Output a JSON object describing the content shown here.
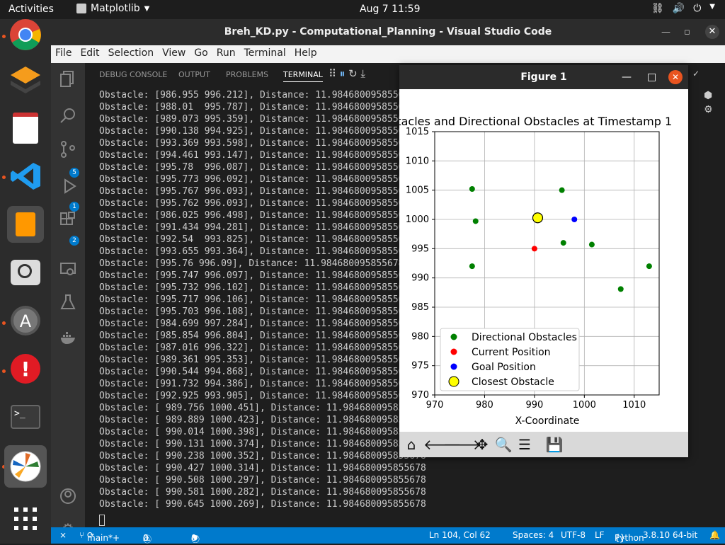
{
  "topbar": {
    "activities": "Activities",
    "app": "Matplotlib",
    "clock": "Aug 7  11:59"
  },
  "window": {
    "title": "Breh_KD.py - Computational_Planning - Visual Studio Code"
  },
  "menu": [
    "File",
    "Edit",
    "Selection",
    "View",
    "Go",
    "Run",
    "Terminal",
    "Help"
  ],
  "panel_tabs": [
    "DEBUG CONSOLE",
    "OUTPUT",
    "PROBLEMS",
    "TERMINAL"
  ],
  "badges": {
    "scm": "5",
    "run": "1",
    "ext": "2",
    "settings": "1"
  },
  "terminal_lines": [
    "Obstacle: [986.955 996.212], Distance: 11.984680095855678",
    "Obstacle: [988.01  995.787], Distance: 11.984680095855678",
    "Obstacle: [989.073 995.359], Distance: 11.984680095855678",
    "Obstacle: [990.138 994.925], Distance: 11.984680095855678",
    "Obstacle: [993.369 993.598], Distance: 11.984680095855678",
    "Obstacle: [994.461 993.147], Distance: 11.984680095855678",
    "Obstacle: [995.78  996.087], Distance: 11.984680095855678",
    "Obstacle: [995.773 996.092], Distance: 11.984680095855678",
    "Obstacle: [995.767 996.093], Distance: 11.984680095855678",
    "Obstacle: [995.762 996.093], Distance: 11.984680095855678",
    "Obstacle: [986.025 996.498], Distance: 11.984680095855678",
    "Obstacle: [991.434 994.281], Distance: 11.984680095855678",
    "Obstacle: [992.54  993.825], Distance: 11.984680095855678",
    "Obstacle: [993.655 993.364], Distance: 11.984680095855678",
    "Obstacle: [995.76 996.09], Distance: 11.984680095855678",
    "Obstacle: [995.747 996.097], Distance: 11.984680095855678",
    "Obstacle: [995.732 996.102], Distance: 11.984680095855678",
    "Obstacle: [995.717 996.106], Distance: 11.984680095855678",
    "Obstacle: [995.703 996.108], Distance: 11.984680095855678",
    "Obstacle: [984.699 997.284], Distance: 11.984680095855678",
    "Obstacle: [985.854 996.804], Distance: 11.984680095855678",
    "Obstacle: [987.016 996.322], Distance: 11.984680095855678",
    "Obstacle: [989.361 995.353], Distance: 11.984680095855678",
    "Obstacle: [990.544 994.868], Distance: 11.984680095855678",
    "Obstacle: [991.732 994.386], Distance: 11.984680095855678",
    "Obstacle: [992.925 993.905], Distance: 11.984680095855678",
    "Obstacle: [ 989.756 1000.451], Distance: 11.984680095855678",
    "Obstacle: [ 989.889 1000.423], Distance: 11.984680095855678",
    "Obstacle: [ 990.014 1000.398], Distance: 11.984680095855678",
    "Obstacle: [ 990.131 1000.374], Distance: 11.984680095855678",
    "Obstacle: [ 990.238 1000.352], Distance: 11.984680095855678",
    "Obstacle: [ 990.427 1000.314], Distance: 11.984680095855678",
    "Obstacle: [ 990.508 1000.297], Distance: 11.984680095855678",
    "Obstacle: [ 990.581 1000.282], Distance: 11.984680095855678",
    "Obstacle: [ 990.645 1000.269], Distance: 11.984680095855678"
  ],
  "status": {
    "branch": "main*+",
    "errors": "0",
    "warnings": "0",
    "ports": "0",
    "position": "Ln 104, Col 62",
    "spaces": "Spaces: 4",
    "encoding": "UTF-8",
    "eol": "LF",
    "language": "Python",
    "version": "3.8.10 64-bit"
  },
  "figure": {
    "title": "Figure 1"
  },
  "chart_data": {
    "type": "scatter",
    "title": "stacles and Directional Obstacles at Timestamp 1",
    "xlabel": "X-Coordinate",
    "xlim": [
      970,
      1015
    ],
    "ylim": [
      970,
      1015
    ],
    "xticks": [
      970,
      980,
      990,
      1000,
      1010
    ],
    "yticks": [
      970,
      975,
      980,
      985,
      990,
      995,
      1000,
      1005,
      1010,
      1015
    ],
    "grid": true,
    "legend_loc": "lower left",
    "series": [
      {
        "name": "Directional Obstacles",
        "color": "#008000",
        "points": [
          [
            977.5,
            1005.2
          ],
          [
            978.2,
            999.7
          ],
          [
            977.5,
            992
          ],
          [
            995.5,
            1005
          ],
          [
            995.8,
            996
          ],
          [
            1001.5,
            995.7
          ],
          [
            1007.3,
            988.1
          ],
          [
            1013,
            992
          ]
        ]
      },
      {
        "name": "Current Position",
        "color": "#ff0000",
        "points": [
          [
            990,
            995
          ]
        ]
      },
      {
        "name": "Goal Position",
        "color": "#0000ff",
        "points": [
          [
            998,
            1000
          ]
        ]
      },
      {
        "name": "Closest Obstacle",
        "color": "#ffff00",
        "points": [
          [
            990.65,
            1000.27
          ]
        ]
      }
    ]
  }
}
